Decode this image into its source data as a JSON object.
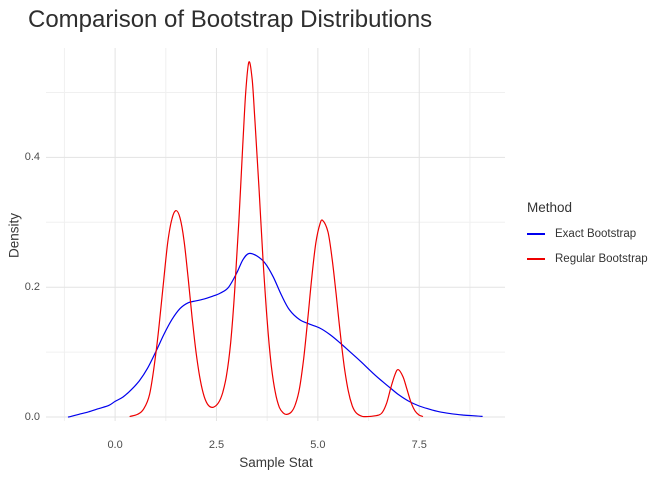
{
  "header": {
    "title": "Comparison of Bootstrap Distributions"
  },
  "chart_data": {
    "type": "line",
    "title": "Comparison of Bootstrap Distributions",
    "xlabel": "Sample Stat",
    "ylabel": "Density",
    "xlim": [
      -1.2,
      9.1
    ],
    "ylim": [
      0,
      0.55
    ],
    "grid": true,
    "background": "#ffffff",
    "grid_color_major": "#e3e3e3",
    "grid_color_minor": "#f0f0f0",
    "x_ticks": {
      "major": [
        0.0,
        2.5,
        5.0,
        7.5
      ],
      "labels": [
        "0.0",
        "2.5",
        "5.0",
        "7.5"
      ],
      "minor": [
        -1.25,
        1.25,
        3.75,
        6.25,
        8.75
      ]
    },
    "y_ticks": {
      "major": [
        0.0,
        0.2,
        0.4
      ],
      "labels": [
        "0.0",
        "0.2",
        "0.4"
      ],
      "minor": [
        0.1,
        0.3,
        0.5
      ]
    },
    "legend": {
      "title": "Method",
      "position": "right"
    },
    "series": [
      {
        "name": "Exact Bootstrap",
        "color": "#0000EE",
        "peak": {
          "x": 3.3,
          "y": 0.252
        },
        "points": [
          [
            -1.15,
            0.0
          ],
          [
            -0.9,
            0.004
          ],
          [
            -0.65,
            0.008
          ],
          [
            -0.4,
            0.013
          ],
          [
            -0.15,
            0.018
          ],
          [
            0.0,
            0.024
          ],
          [
            0.2,
            0.031
          ],
          [
            0.4,
            0.042
          ],
          [
            0.6,
            0.056
          ],
          [
            0.8,
            0.075
          ],
          [
            1.0,
            0.1
          ],
          [
            1.2,
            0.127
          ],
          [
            1.4,
            0.15
          ],
          [
            1.6,
            0.167
          ],
          [
            1.8,
            0.176
          ],
          [
            2.0,
            0.179
          ],
          [
            2.2,
            0.182
          ],
          [
            2.4,
            0.186
          ],
          [
            2.6,
            0.191
          ],
          [
            2.8,
            0.2
          ],
          [
            3.0,
            0.222
          ],
          [
            3.15,
            0.242
          ],
          [
            3.3,
            0.252
          ],
          [
            3.5,
            0.248
          ],
          [
            3.7,
            0.237
          ],
          [
            3.9,
            0.216
          ],
          [
            4.1,
            0.188
          ],
          [
            4.3,
            0.165
          ],
          [
            4.55,
            0.15
          ],
          [
            4.8,
            0.143
          ],
          [
            5.05,
            0.137
          ],
          [
            5.3,
            0.127
          ],
          [
            5.55,
            0.114
          ],
          [
            5.8,
            0.1
          ],
          [
            6.05,
            0.086
          ],
          [
            6.3,
            0.071
          ],
          [
            6.55,
            0.057
          ],
          [
            6.8,
            0.044
          ],
          [
            7.0,
            0.034
          ],
          [
            7.25,
            0.024
          ],
          [
            7.5,
            0.017
          ],
          [
            7.75,
            0.012
          ],
          [
            8.0,
            0.008
          ],
          [
            8.3,
            0.005
          ],
          [
            8.6,
            0.003
          ],
          [
            9.05,
            0.001
          ]
        ]
      },
      {
        "name": "Regular Bootstrap",
        "color": "#EE0000",
        "peaks": [
          [
            1.5,
            0.318
          ],
          [
            3.3,
            0.547
          ],
          [
            5.12,
            0.303
          ],
          [
            6.98,
            0.073
          ]
        ],
        "valleys": [
          [
            2.42,
            0.015
          ],
          [
            4.23,
            0.004
          ],
          [
            6.2,
            0.001
          ]
        ],
        "points": [
          [
            0.37,
            0.001
          ],
          [
            0.55,
            0.004
          ],
          [
            0.7,
            0.012
          ],
          [
            0.85,
            0.035
          ],
          [
            1.0,
            0.095
          ],
          [
            1.1,
            0.15
          ],
          [
            1.2,
            0.212
          ],
          [
            1.3,
            0.27
          ],
          [
            1.4,
            0.305
          ],
          [
            1.5,
            0.318
          ],
          [
            1.6,
            0.307
          ],
          [
            1.7,
            0.272
          ],
          [
            1.8,
            0.215
          ],
          [
            1.9,
            0.153
          ],
          [
            2.0,
            0.098
          ],
          [
            2.1,
            0.057
          ],
          [
            2.2,
            0.031
          ],
          [
            2.3,
            0.018
          ],
          [
            2.42,
            0.015
          ],
          [
            2.55,
            0.022
          ],
          [
            2.65,
            0.037
          ],
          [
            2.75,
            0.065
          ],
          [
            2.85,
            0.115
          ],
          [
            2.95,
            0.195
          ],
          [
            3.05,
            0.3
          ],
          [
            3.15,
            0.42
          ],
          [
            3.22,
            0.5
          ],
          [
            3.3,
            0.547
          ],
          [
            3.38,
            0.52
          ],
          [
            3.45,
            0.455
          ],
          [
            3.55,
            0.35
          ],
          [
            3.65,
            0.24
          ],
          [
            3.75,
            0.148
          ],
          [
            3.85,
            0.08
          ],
          [
            3.95,
            0.038
          ],
          [
            4.05,
            0.015
          ],
          [
            4.15,
            0.006
          ],
          [
            4.23,
            0.004
          ],
          [
            4.35,
            0.008
          ],
          [
            4.45,
            0.02
          ],
          [
            4.55,
            0.045
          ],
          [
            4.65,
            0.09
          ],
          [
            4.75,
            0.15
          ],
          [
            4.85,
            0.215
          ],
          [
            4.95,
            0.268
          ],
          [
            5.05,
            0.297
          ],
          [
            5.12,
            0.303
          ],
          [
            5.25,
            0.285
          ],
          [
            5.35,
            0.245
          ],
          [
            5.45,
            0.19
          ],
          [
            5.55,
            0.13
          ],
          [
            5.65,
            0.078
          ],
          [
            5.75,
            0.04
          ],
          [
            5.85,
            0.017
          ],
          [
            5.95,
            0.006
          ],
          [
            6.1,
            0.001
          ],
          [
            6.3,
            0.001
          ],
          [
            6.5,
            0.003
          ],
          [
            6.6,
            0.008
          ],
          [
            6.7,
            0.022
          ],
          [
            6.8,
            0.045
          ],
          [
            6.9,
            0.065
          ],
          [
            6.98,
            0.073
          ],
          [
            7.1,
            0.062
          ],
          [
            7.2,
            0.042
          ],
          [
            7.3,
            0.022
          ],
          [
            7.4,
            0.009
          ],
          [
            7.5,
            0.003
          ],
          [
            7.58,
            0.001
          ]
        ]
      }
    ]
  }
}
